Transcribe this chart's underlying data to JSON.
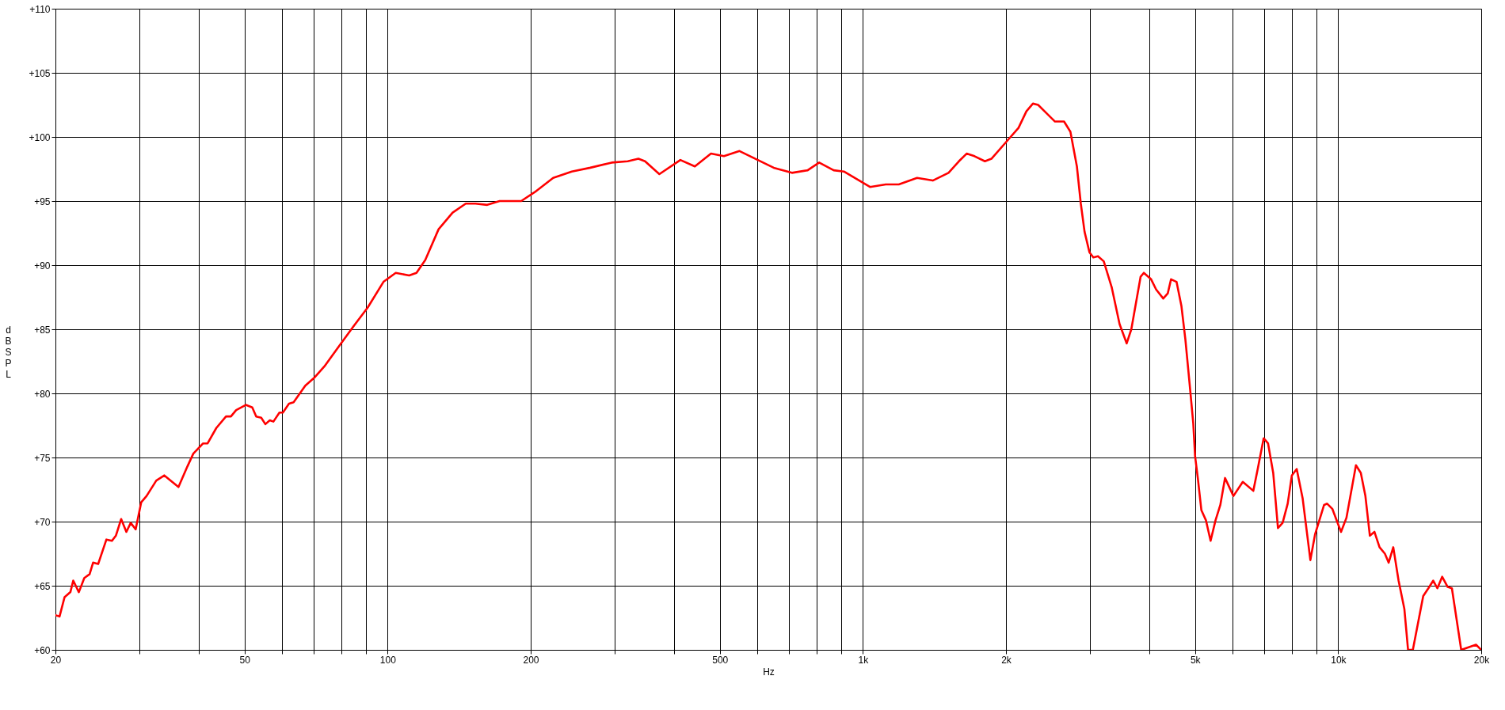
{
  "chart_data": {
    "type": "line",
    "xlabel": "Hz",
    "ylabel": "dB SPL",
    "log": "x",
    "grid": true,
    "line_style": "solid",
    "xlim": [
      20,
      20000
    ],
    "ylim": [
      60,
      110
    ],
    "xticks": [
      20,
      {
        "value": 30,
        "label": null
      },
      {
        "value": 40,
        "label": null
      },
      50,
      {
        "value": 60,
        "label": null
      },
      {
        "value": 70,
        "label": null
      },
      {
        "value": 80,
        "label": null
      },
      {
        "value": 90,
        "label": null
      },
      100,
      200,
      {
        "value": 300,
        "label": null
      },
      {
        "value": 400,
        "label": null
      },
      500,
      {
        "value": 600,
        "label": null
      },
      {
        "value": 700,
        "label": null
      },
      {
        "value": 800,
        "label": null
      },
      {
        "value": 900,
        "label": null
      },
      {
        "value": 1000,
        "label": "1k"
      },
      {
        "value": 2000,
        "label": "2k"
      },
      {
        "value": 3000,
        "label": null
      },
      {
        "value": 4000,
        "label": null
      },
      {
        "value": 5000,
        "label": "5k"
      },
      {
        "value": 6000,
        "label": null
      },
      {
        "value": 7000,
        "label": null
      },
      {
        "value": 8000,
        "label": null
      },
      {
        "value": 9000,
        "label": null
      },
      {
        "value": 10000,
        "label": "10k"
      },
      {
        "value": 20000,
        "label": "20k"
      }
    ],
    "yticks": [
      {
        "value": 60,
        "label": "+60"
      },
      {
        "value": 65,
        "label": "+65"
      },
      {
        "value": 70,
        "label": "+70"
      },
      {
        "value": 75,
        "label": "+75"
      },
      {
        "value": 80,
        "label": "+80"
      },
      {
        "value": 85,
        "label": "+85"
      },
      {
        "value": 90,
        "label": "+90"
      },
      {
        "value": 95,
        "label": "+95"
      },
      {
        "value": 100,
        "label": "+100"
      },
      {
        "value": 105,
        "label": "+105"
      },
      {
        "value": 110,
        "label": "+110"
      }
    ],
    "x": [
      20,
      20.4,
      20.9,
      21.5,
      21.8,
      22.4,
      23.0,
      23.6,
      24.0,
      24.6,
      25.6,
      26.3,
      26.8,
      27.5,
      28.2,
      28.8,
      29.5,
      30.3,
      31.1,
      32.6,
      33.9,
      36.3,
      37.9,
      39.0,
      40.9,
      41.8,
      43.6,
      45.7,
      46.8,
      48.0,
      50.3,
      51.9,
      52.9,
      54.2,
      55.3,
      56.5,
      57.5,
      59.2,
      60.2,
      62.0,
      63.4,
      67.1,
      70.0,
      73.6,
      78.0,
      85,
      90.8,
      98.0,
      104,
      111,
      115,
      120,
      128,
      137,
      146,
      153,
      162,
      172,
      191,
      204,
      223,
      244,
      267,
      296,
      320,
      337,
      348,
      373,
      413,
      443,
      479,
      510,
      550,
      601,
      649,
      709,
      765,
      809,
      868,
      912,
      1035,
      1117,
      1190,
      1300,
      1403,
      1514,
      1592,
      1653,
      1717,
      1806,
      1864,
      2023,
      2125,
      2208,
      2279,
      2337,
      2442,
      2536,
      2650,
      2733,
      2820,
      2874,
      2927,
      2997,
      3054,
      3123,
      3212,
      3337,
      3468,
      3589,
      3671,
      3840,
      3900,
      4040,
      4140,
      4285,
      4380,
      4450,
      4570,
      4680,
      4770,
      4870,
      4955,
      5000,
      5066,
      5154,
      5270,
      5390,
      5520,
      5650,
      5780,
      6020,
      6300,
      6630,
      6780,
      6970,
      7120,
      7300,
      7470,
      7640,
      7830,
      7990,
      8180,
      8420,
      8740,
      8940,
      9340,
      9480,
      9720,
      9950,
      10140,
      10410,
      10900,
      11160,
      11410,
      11660,
      11920,
      12220,
      12540,
      12770,
      13060,
      13400,
      13780,
      14030,
      14360,
      15100,
      15480,
      15850,
      16170,
      16550,
      17000,
      17350,
      18150,
      19500,
      20000
    ],
    "series": [
      {
        "color": "#ff0000",
        "values": [
          62.7,
          62.6,
          64.1,
          64.5,
          65.4,
          64.5,
          65.6,
          65.9,
          66.8,
          66.7,
          68.6,
          68.5,
          68.9,
          70.2,
          69.2,
          69.9,
          69.4,
          71.5,
          72.0,
          73.2,
          73.6,
          72.7,
          74.3,
          75.3,
          76.1,
          76.1,
          77.3,
          78.2,
          78.2,
          78.7,
          79.1,
          78.9,
          78.2,
          78.1,
          77.6,
          77.9,
          77.8,
          78.5,
          78.5,
          79.2,
          79.3,
          80.6,
          81.2,
          82.1,
          83.4,
          85.3,
          86.7,
          88.7,
          89.4,
          89.2,
          89.4,
          90.4,
          92.8,
          94.1,
          94.8,
          94.8,
          94.7,
          95.0,
          95.0,
          95.7,
          96.8,
          97.3,
          97.6,
          98.0,
          98.1,
          98.3,
          98.1,
          97.1,
          98.2,
          97.7,
          98.7,
          98.5,
          98.9,
          98.2,
          97.6,
          97.2,
          97.4,
          98.0,
          97.4,
          97.3,
          96.1,
          96.3,
          96.3,
          96.8,
          96.6,
          97.2,
          98.1,
          98.7,
          98.5,
          98.1,
          98.3,
          99.8,
          100.7,
          102.0,
          102.6,
          102.5,
          101.8,
          101.2,
          101.2,
          100.4,
          97.7,
          94.8,
          92.6,
          91.0,
          90.6,
          90.7,
          90.3,
          88.3,
          85.4,
          83.9,
          85.0,
          89.1,
          89.4,
          88.9,
          88.1,
          87.4,
          87.8,
          88.9,
          88.7,
          86.8,
          84.2,
          80.7,
          77.7,
          75.1,
          73.4,
          70.9,
          70.1,
          68.5,
          70.1,
          71.3,
          73.4,
          72.0,
          73.1,
          72.4,
          74.2,
          76.5,
          76.1,
          73.8,
          69.5,
          69.9,
          71.4,
          73.6,
          74.1,
          71.8,
          67.0,
          69.0,
          71.3,
          71.4,
          71.0,
          70.0,
          69.2,
          70.3,
          74.4,
          73.8,
          72.0,
          68.9,
          69.2,
          68.0,
          67.5,
          66.8,
          68.0,
          65.4,
          63.2,
          60.0,
          60.0,
          64.2,
          64.8,
          65.4,
          64.8,
          65.7,
          64.9,
          64.8,
          60.0,
          60.4,
          60.0
        ]
      }
    ]
  }
}
